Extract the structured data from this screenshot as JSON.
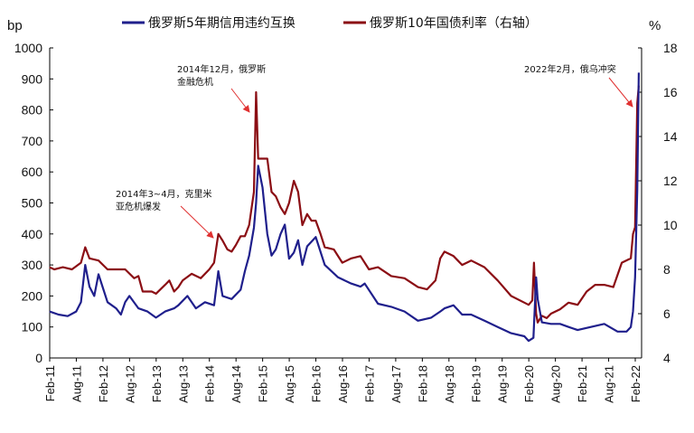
{
  "chart_data": {
    "type": "line",
    "left_unit": "bp",
    "right_unit": "%",
    "ylim_left": [
      0,
      1000
    ],
    "ylim_right": [
      4,
      18
    ],
    "yticks_left": [
      "0",
      "100",
      "200",
      "300",
      "400",
      "500",
      "600",
      "700",
      "800",
      "900",
      "1000"
    ],
    "yticks_right": [
      "4",
      "6",
      "8",
      "10",
      "12",
      "14",
      "16",
      "18"
    ],
    "xticks": [
      "Feb-11",
      "Aug-11",
      "Feb-12",
      "Aug-12",
      "Feb-13",
      "Aug-13",
      "Feb-14",
      "Aug-14",
      "Feb-15",
      "Aug-15",
      "Feb-16",
      "Aug-16",
      "Feb-17",
      "Aug-17",
      "Feb-18",
      "Aug-18",
      "Feb-19",
      "Aug-19",
      "Feb-20",
      "Aug-20",
      "Feb-21",
      "Aug-21",
      "Feb-22"
    ],
    "grid": false,
    "legend_position": "top",
    "series": [
      {
        "name": "俄罗斯5年期信用违约互换",
        "axis": "left",
        "color": "#1f1f8c",
        "x": [
          2011.08,
          2011.25,
          2011.42,
          2011.58,
          2011.67,
          2011.75,
          2011.83,
          2011.92,
          2012.0,
          2012.17,
          2012.33,
          2012.42,
          2012.5,
          2012.58,
          2012.75,
          2012.92,
          2013.08,
          2013.25,
          2013.42,
          2013.5,
          2013.67,
          2013.83,
          2014.0,
          2014.17,
          2014.25,
          2014.33,
          2014.5,
          2014.67,
          2014.75,
          2014.83,
          2014.92,
          2014.96,
          2015.0,
          2015.08,
          2015.17,
          2015.25,
          2015.33,
          2015.42,
          2015.5,
          2015.58,
          2015.67,
          2015.75,
          2015.83,
          2015.92,
          2016.08,
          2016.25,
          2016.5,
          2016.75,
          2016.92,
          2017.0,
          2017.25,
          2017.5,
          2017.75,
          2018.0,
          2018.25,
          2018.42,
          2018.5,
          2018.67,
          2018.83,
          2019.0,
          2019.25,
          2019.5,
          2019.75,
          2020.0,
          2020.08,
          2020.17,
          2020.22,
          2020.25,
          2020.33,
          2020.5,
          2020.67,
          2020.83,
          2021.0,
          2021.25,
          2021.5,
          2021.75,
          2021.92,
          2022.0,
          2022.04,
          2022.08,
          2022.12,
          2022.15
        ],
        "values": [
          150,
          140,
          135,
          150,
          180,
          300,
          230,
          200,
          270,
          180,
          160,
          140,
          180,
          200,
          160,
          150,
          130,
          150,
          160,
          170,
          200,
          160,
          180,
          170,
          280,
          200,
          190,
          220,
          280,
          330,
          420,
          500,
          620,
          550,
          400,
          330,
          350,
          400,
          430,
          320,
          340,
          380,
          300,
          360,
          390,
          300,
          260,
          240,
          230,
          240,
          175,
          165,
          150,
          120,
          130,
          150,
          160,
          170,
          140,
          140,
          120,
          100,
          80,
          70,
          55,
          65,
          260,
          190,
          115,
          110,
          110,
          100,
          90,
          100,
          110,
          85,
          85,
          100,
          150,
          260,
          540,
          920
        ]
      },
      {
        "name": "俄罗斯10年国债利率（右轴）",
        "axis": "right",
        "color": "#8b0e14",
        "x": [
          2011.08,
          2011.17,
          2011.33,
          2011.5,
          2011.67,
          2011.75,
          2011.83,
          2012.0,
          2012.17,
          2012.33,
          2012.5,
          2012.67,
          2012.75,
          2012.83,
          2013.0,
          2013.08,
          2013.25,
          2013.33,
          2013.42,
          2013.5,
          2013.58,
          2013.75,
          2013.92,
          2014.08,
          2014.17,
          2014.25,
          2014.33,
          2014.42,
          2014.5,
          2014.58,
          2014.67,
          2014.75,
          2014.83,
          2014.92,
          2014.96,
          2015.0,
          2015.08,
          2015.17,
          2015.25,
          2015.33,
          2015.42,
          2015.5,
          2015.58,
          2015.67,
          2015.75,
          2015.83,
          2015.92,
          2016.0,
          2016.08,
          2016.17,
          2016.25,
          2016.42,
          2016.58,
          2016.75,
          2016.92,
          2017.08,
          2017.25,
          2017.5,
          2017.75,
          2018.0,
          2018.17,
          2018.33,
          2018.42,
          2018.5,
          2018.67,
          2018.83,
          2019.0,
          2019.25,
          2019.5,
          2019.75,
          2020.0,
          2020.08,
          2020.15,
          2020.18,
          2020.22,
          2020.25,
          2020.33,
          2020.42,
          2020.5,
          2020.67,
          2020.83,
          2021.0,
          2021.17,
          2021.33,
          2021.5,
          2021.67,
          2021.83,
          2022.0,
          2022.04,
          2022.08,
          2022.12,
          2022.15
        ],
        "values": [
          8.1,
          8.0,
          8.1,
          8.0,
          8.3,
          9.0,
          8.5,
          8.4,
          8.0,
          8.0,
          8.0,
          7.6,
          7.7,
          7.0,
          7.0,
          6.9,
          7.3,
          7.5,
          7.0,
          7.2,
          7.5,
          7.8,
          7.6,
          8.0,
          8.3,
          9.6,
          9.3,
          8.9,
          8.8,
          9.1,
          9.5,
          9.5,
          10.0,
          11.5,
          16.0,
          13.0,
          13.0,
          13.0,
          11.5,
          11.3,
          10.8,
          10.5,
          11.0,
          12.0,
          11.5,
          10.0,
          10.5,
          10.2,
          10.2,
          9.6,
          9.0,
          8.9,
          8.3,
          8.5,
          8.6,
          8.0,
          8.1,
          7.7,
          7.6,
          7.2,
          7.1,
          7.5,
          8.5,
          8.8,
          8.6,
          8.2,
          8.4,
          8.1,
          7.5,
          6.8,
          6.5,
          6.4,
          6.6,
          8.3,
          6.0,
          5.6,
          5.9,
          5.8,
          6.0,
          6.2,
          6.5,
          6.4,
          7.0,
          7.3,
          7.3,
          7.2,
          8.3,
          8.5,
          9.6,
          9.9,
          15.5,
          16.3
        ]
      }
    ],
    "annotations": [
      {
        "lines": [
          "2014年3~4月，克里米",
          "亚危机爆发"
        ]
      },
      {
        "lines": [
          "2014年12月，俄罗斯",
          "金融危机"
        ]
      },
      {
        "lines": [
          "2022年2月，俄乌冲突"
        ]
      }
    ]
  }
}
